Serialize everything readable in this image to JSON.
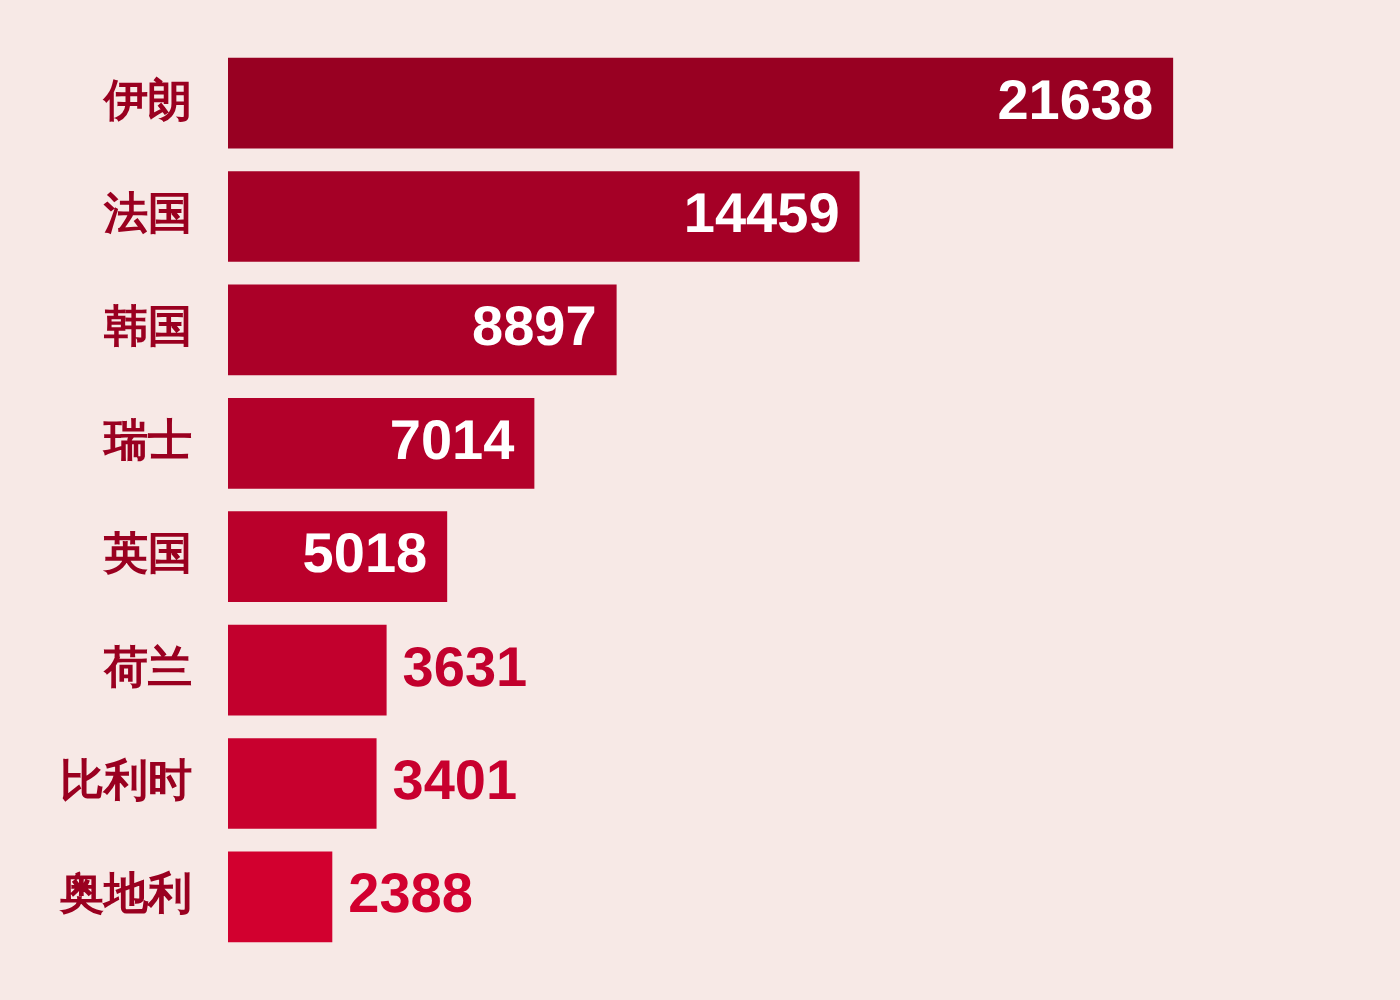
{
  "chart_data": {
    "type": "bar",
    "orientation": "horizontal",
    "categories": [
      "伊朗",
      "法国",
      "韩国",
      "瑞士",
      "英国",
      "荷兰",
      "比利时",
      "奥地利"
    ],
    "values": [
      21638,
      14459,
      8897,
      7014,
      5018,
      3631,
      3401,
      2388
    ],
    "colors": [
      "#980022",
      "#a50026",
      "#ab0028",
      "#b3002a",
      "#ba002b",
      "#c2002d",
      "#c8002e",
      "#d2002f"
    ],
    "data_labels": true
  }
}
